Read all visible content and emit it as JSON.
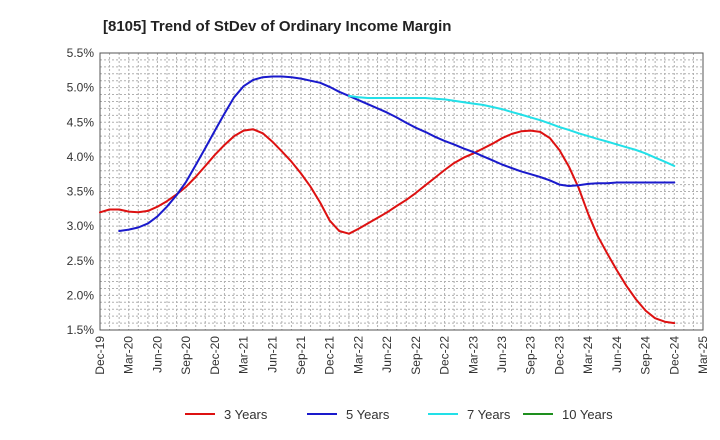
{
  "chart_data": {
    "type": "line",
    "title": "[8105]  Trend of StDev of Ordinary Income Margin",
    "xlabel": "",
    "ylabel": "",
    "x_ticks": [
      "Dec-19",
      "Mar-20",
      "Jun-20",
      "Sep-20",
      "Dec-20",
      "Mar-21",
      "Jun-21",
      "Sep-21",
      "Dec-21",
      "Mar-22",
      "Jun-22",
      "Sep-22",
      "Dec-22",
      "Mar-23",
      "Jun-23",
      "Sep-23",
      "Dec-23",
      "Mar-24",
      "Jun-24",
      "Sep-24",
      "Dec-24",
      "Mar-25"
    ],
    "y_ticks": [
      "1.5%",
      "2.0%",
      "2.5%",
      "3.0%",
      "3.5%",
      "4.0%",
      "4.5%",
      "5.0%",
      "5.5%"
    ],
    "ylim": [
      1.5,
      5.5
    ],
    "grid": true,
    "legend_position": "bottom",
    "series": [
      {
        "name": "3 Years",
        "color": "#dd1111",
        "x": [
          0,
          0.33,
          0.67,
          1,
          1.33,
          1.67,
          2,
          2.33,
          2.67,
          3,
          3.33,
          3.67,
          4,
          4.33,
          4.67,
          5,
          5.33,
          5.67,
          6,
          6.33,
          6.67,
          7,
          7.33,
          7.67,
          8,
          8.33,
          8.67,
          9,
          9.33,
          9.67,
          10,
          10.33,
          10.67,
          11,
          11.33,
          11.67,
          12,
          12.33,
          12.67,
          13,
          13.33,
          13.67,
          14,
          14.33,
          14.67,
          15,
          15.33,
          15.67,
          16,
          16.33,
          16.67,
          17,
          17.33,
          17.67,
          18,
          18.33,
          18.67,
          19,
          19.33,
          19.67,
          20
        ],
        "y": [
          3.2,
          3.24,
          3.24,
          3.21,
          3.2,
          3.22,
          3.28,
          3.36,
          3.46,
          3.57,
          3.71,
          3.87,
          4.03,
          4.17,
          4.3,
          4.38,
          4.4,
          4.34,
          4.22,
          4.08,
          3.93,
          3.76,
          3.57,
          3.34,
          3.08,
          2.93,
          2.89,
          2.96,
          3.04,
          3.12,
          3.2,
          3.29,
          3.38,
          3.48,
          3.59,
          3.7,
          3.81,
          3.91,
          3.99,
          4.05,
          4.12,
          4.19,
          4.27,
          4.33,
          4.37,
          4.38,
          4.36,
          4.27,
          4.1,
          3.86,
          3.55,
          3.18,
          2.86,
          2.6,
          2.36,
          2.14,
          1.94,
          1.78,
          1.67,
          1.62,
          1.6
        ]
      },
      {
        "name": "5 Years",
        "color": "#1a1acc",
        "x": [
          0.67,
          1,
          1.33,
          1.67,
          2,
          2.33,
          2.67,
          3,
          3.33,
          3.67,
          4,
          4.33,
          4.67,
          5,
          5.33,
          5.67,
          6,
          6.33,
          6.67,
          7,
          7.33,
          7.67,
          8,
          8.33,
          8.67,
          9,
          9.33,
          9.67,
          10,
          10.33,
          10.67,
          11,
          11.33,
          11.67,
          12,
          12.33,
          12.67,
          13,
          13.33,
          13.67,
          14,
          14.33,
          14.67,
          15,
          15.33,
          15.67,
          16,
          16.33,
          16.67,
          17,
          17.33,
          17.67,
          18,
          18.33,
          18.67,
          19,
          19.33,
          19.67,
          20
        ],
        "y": [
          2.93,
          2.95,
          2.98,
          3.04,
          3.14,
          3.28,
          3.45,
          3.64,
          3.88,
          4.13,
          4.38,
          4.62,
          4.86,
          5.02,
          5.11,
          5.15,
          5.16,
          5.16,
          5.15,
          5.13,
          5.1,
          5.07,
          5.01,
          4.94,
          4.88,
          4.82,
          4.76,
          4.7,
          4.64,
          4.57,
          4.49,
          4.42,
          4.36,
          4.29,
          4.23,
          4.18,
          4.12,
          4.07,
          4.01,
          3.95,
          3.89,
          3.84,
          3.79,
          3.75,
          3.71,
          3.66,
          3.6,
          3.58,
          3.59,
          3.61,
          3.62,
          3.62,
          3.63,
          3.63,
          3.63,
          3.63,
          3.63,
          3.63,
          3.63
        ]
      },
      {
        "name": "7 Years",
        "color": "#22e0e8",
        "x": [
          8.67,
          9,
          9.33,
          9.67,
          10,
          10.33,
          10.67,
          11,
          11.33,
          11.67,
          12,
          12.33,
          12.67,
          13,
          13.33,
          13.67,
          14,
          14.33,
          14.67,
          15,
          15.33,
          15.67,
          16,
          16.33,
          16.67,
          17,
          17.33,
          17.67,
          18,
          18.33,
          18.67,
          19,
          19.33,
          19.67,
          20
        ],
        "y": [
          4.88,
          4.86,
          4.85,
          4.85,
          4.85,
          4.85,
          4.85,
          4.85,
          4.85,
          4.84,
          4.83,
          4.81,
          4.79,
          4.77,
          4.75,
          4.72,
          4.69,
          4.65,
          4.61,
          4.57,
          4.53,
          4.48,
          4.43,
          4.39,
          4.34,
          4.3,
          4.26,
          4.22,
          4.18,
          4.14,
          4.1,
          4.05,
          3.99,
          3.93,
          3.87
        ]
      },
      {
        "name": "10 Years",
        "color": "#1e8f1e",
        "x": [],
        "y": []
      }
    ]
  }
}
